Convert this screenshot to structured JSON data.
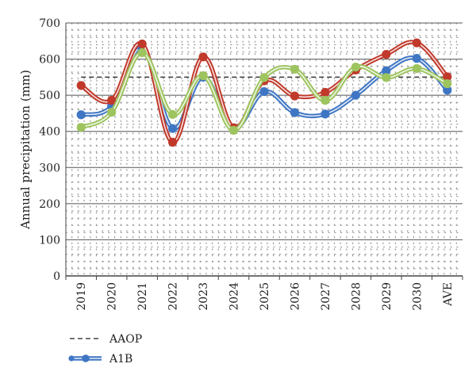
{
  "chart_data": {
    "type": "line",
    "ylabel": "Annual precipitation (mm)",
    "ylim": [
      0,
      700
    ],
    "yticks": [
      0,
      100,
      200,
      300,
      400,
      500,
      600,
      700
    ],
    "categories": [
      "2019",
      "2020",
      "2021",
      "2022",
      "2023",
      "2024",
      "2025",
      "2026",
      "2027",
      "2028",
      "2029",
      "2030",
      "AVE"
    ],
    "grid": "horizontal major lines with dotted minor grid",
    "aaop": {
      "name": "AAOP",
      "value": 550,
      "color": "#444444"
    },
    "series": [
      {
        "name": "A1B",
        "color": "#3f76c4",
        "values": [
          446,
          470,
          630,
          408,
          550,
          410,
          510,
          452,
          448,
          500,
          568,
          602,
          514
        ]
      },
      {
        "color": "#c0392b",
        "values": [
          527,
          486,
          642,
          370,
          606,
          410,
          540,
          498,
          508,
          570,
          613,
          645,
          551
        ]
      },
      {
        "color": "#9dc45e",
        "values": [
          411,
          453,
          618,
          447,
          554,
          403,
          549,
          572,
          486,
          578,
          549,
          574,
          532
        ]
      }
    ],
    "legend": {
      "placement": "bottom-left",
      "entries": [
        "AAOP",
        "A1B"
      ]
    }
  }
}
